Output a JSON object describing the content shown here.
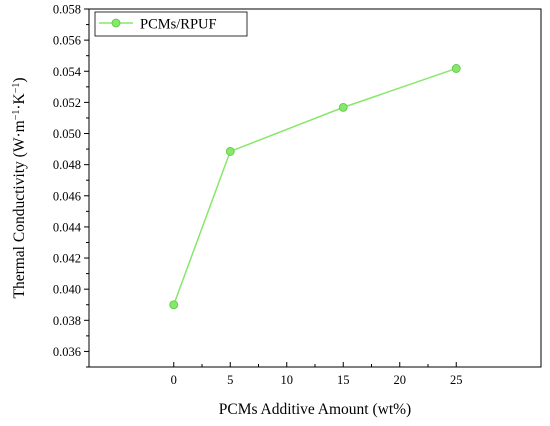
{
  "chart_data": {
    "type": "line",
    "xlabel": "PCMs Additive Amount (wt%)",
    "ylabel": {
      "prefix": "Thermal Conductivity (W·m",
      "exp1": "−1",
      "middle": "·K",
      "exp2": "−1",
      "suffix": ")"
    },
    "xlim": [
      -7.5,
      32.5
    ],
    "ylim": [
      0.035,
      0.058
    ],
    "x_ticks": [
      0,
      5,
      10,
      15,
      20,
      25
    ],
    "y_ticks": [
      0.036,
      0.038,
      0.04,
      0.042,
      0.044,
      0.046,
      0.048,
      0.05,
      0.052,
      0.054,
      0.056,
      0.058
    ],
    "x_tick_labels": [
      "0",
      "5",
      "10",
      "15",
      "20",
      "25"
    ],
    "y_tick_labels": [
      "0.036",
      "0.038",
      "0.040",
      "0.042",
      "0.044",
      "0.046",
      "0.048",
      "0.050",
      "0.052",
      "0.054",
      "0.056",
      "0.058"
    ],
    "grid": false,
    "legend_position": "top-left",
    "series": [
      {
        "name": "PCMs/RPUF",
        "color": "#86e86a",
        "x": [
          0,
          5,
          15,
          25
        ],
        "y": [
          0.039,
          0.04885,
          0.05168,
          0.05418
        ]
      }
    ]
  }
}
